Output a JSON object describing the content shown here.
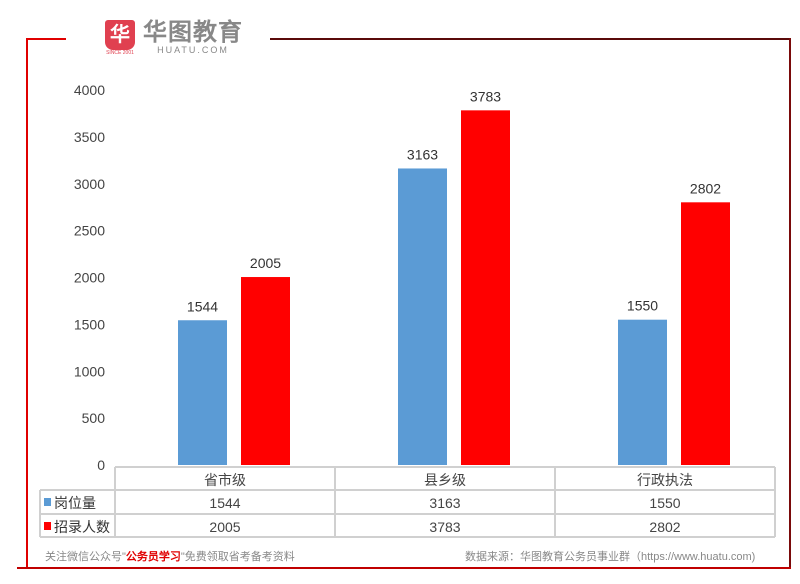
{
  "logo": {
    "mark": "华",
    "name": "华图教育",
    "domain": "HUATU.COM",
    "since": "SINCE 2001"
  },
  "footer": {
    "left_pre": "关注微信公众号\"",
    "left_highlight": "公务员学习",
    "left_post": "\"免费领取省考备考资料",
    "right": "数据来源：华图教育公务员事业群（https://www.huatu.com)"
  },
  "colors": {
    "series1": "#5b9bd5",
    "series2": "#ff0000"
  },
  "chart_data": {
    "type": "bar",
    "categories": [
      "省市级",
      "县乡级",
      "行政执法"
    ],
    "series": [
      {
        "name": "岗位量",
        "values": [
          1544,
          3163,
          1550
        ]
      },
      {
        "name": "招录人数",
        "values": [
          2005,
          3783,
          2802
        ]
      }
    ],
    "ylim": [
      0,
      4000
    ],
    "yticks": [
      0,
      500,
      1000,
      1500,
      2000,
      2500,
      3000,
      3500,
      4000
    ],
    "legend": "data-table-below",
    "grid": false
  }
}
